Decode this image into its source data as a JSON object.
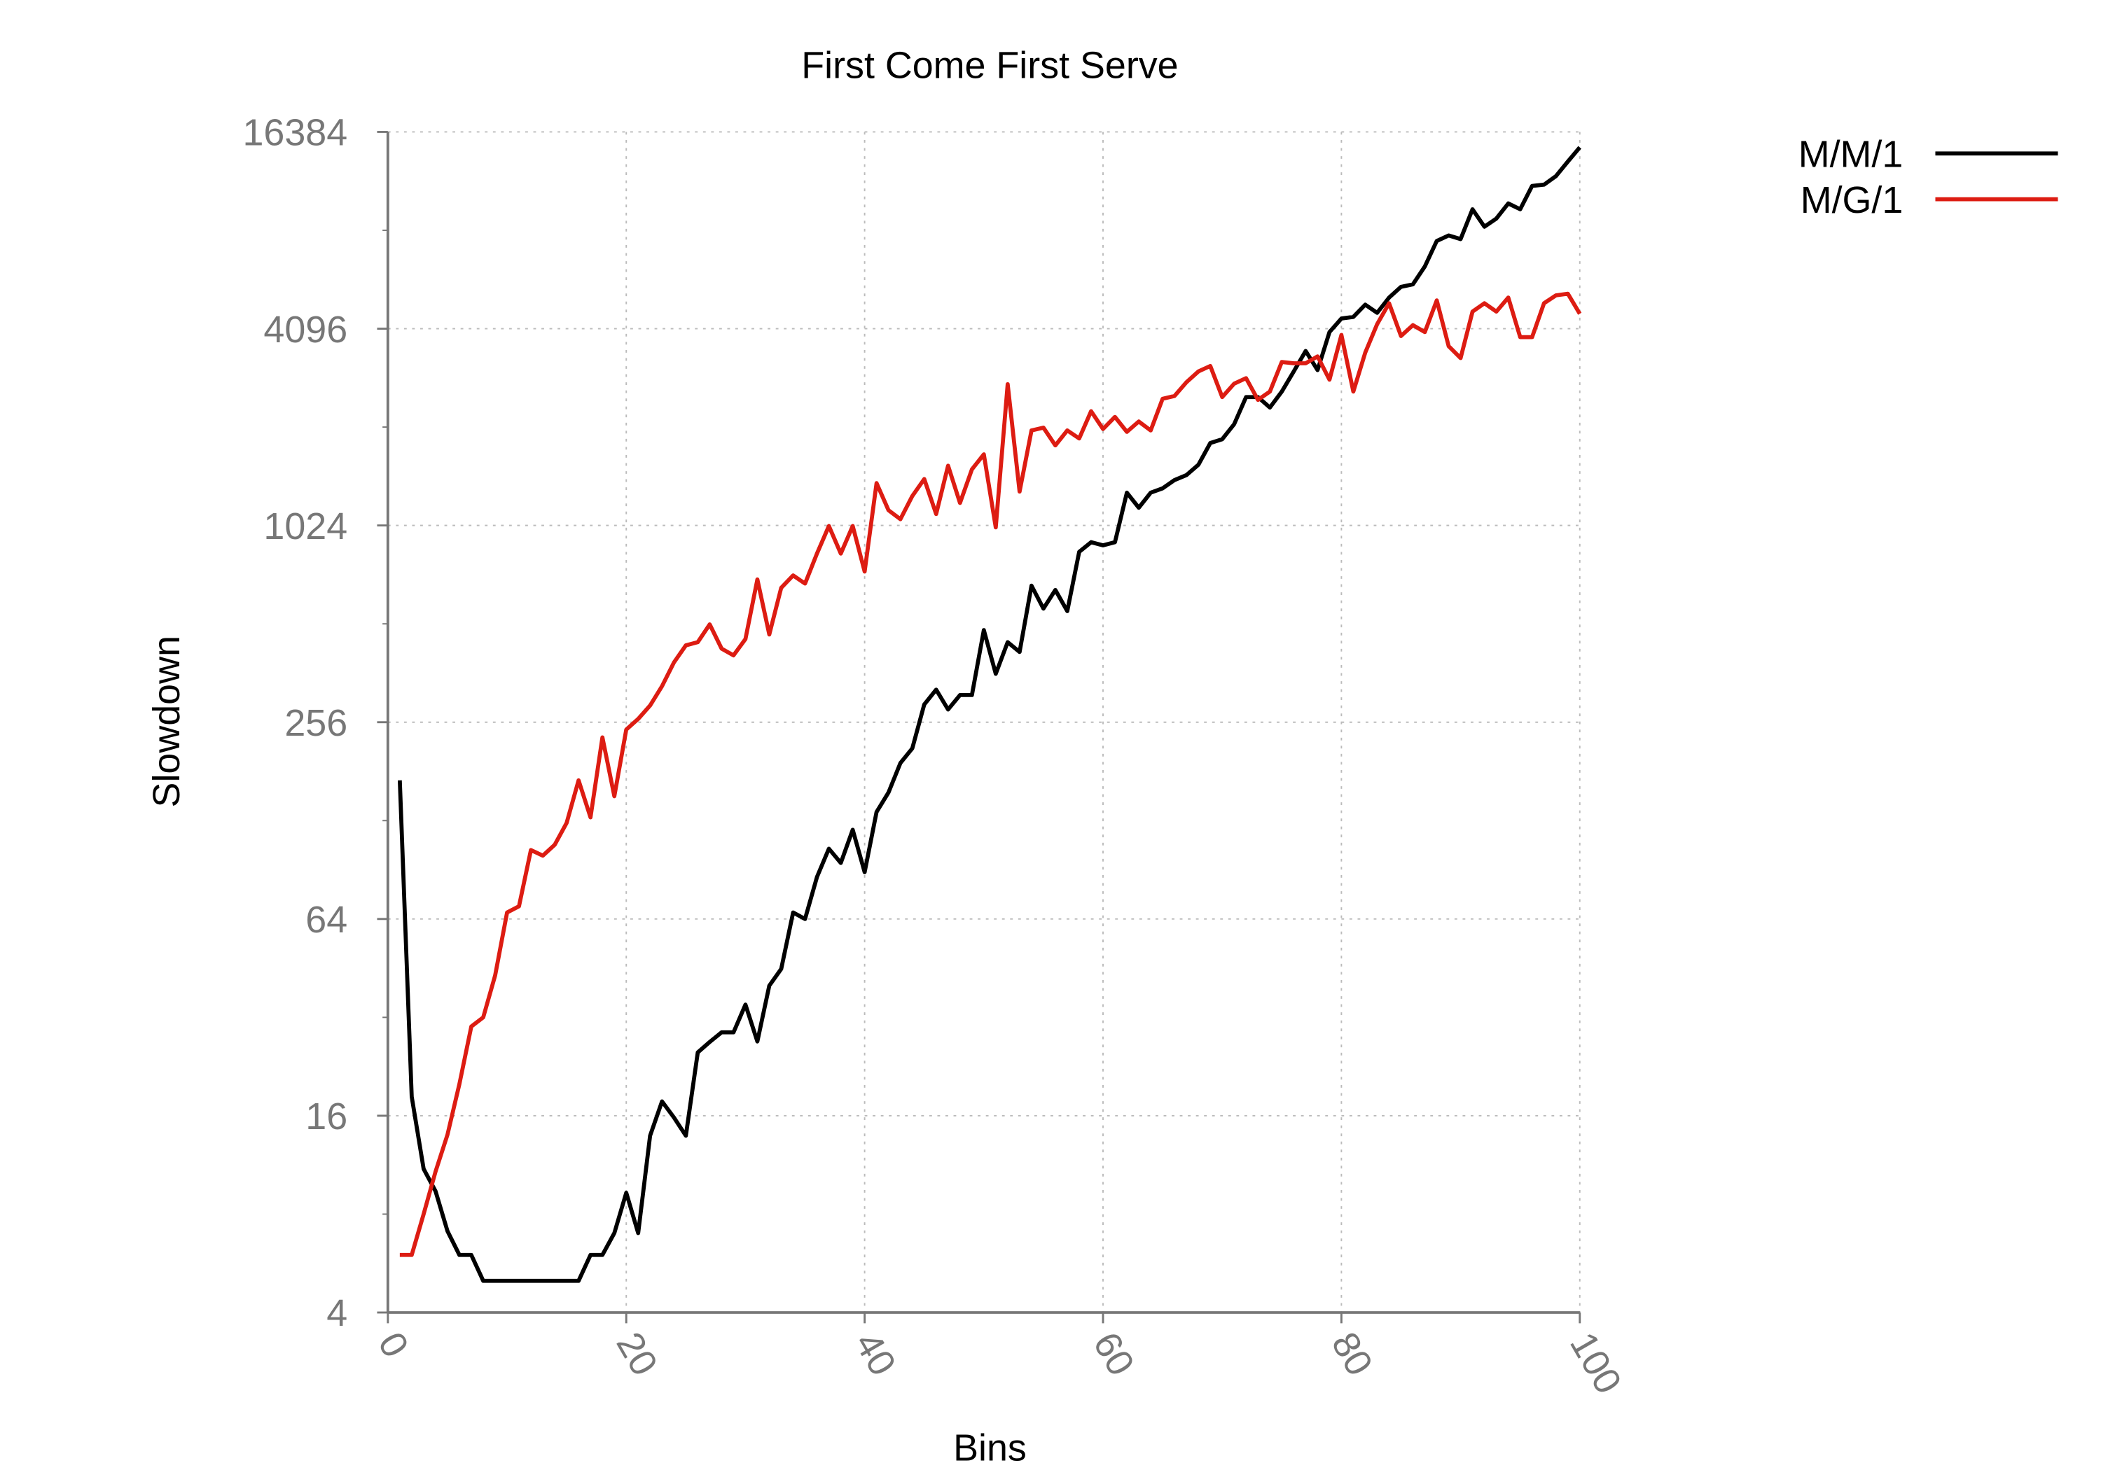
{
  "chart_data": {
    "type": "line",
    "title": "First Come First Serve",
    "xlabel": "Bins",
    "ylabel": "Slowdown",
    "x": [
      1,
      2,
      3,
      4,
      5,
      6,
      7,
      8,
      9,
      10,
      11,
      12,
      13,
      14,
      15,
      16,
      17,
      18,
      19,
      20,
      21,
      22,
      23,
      24,
      25,
      26,
      27,
      28,
      29,
      30,
      31,
      32,
      33,
      34,
      35,
      36,
      37,
      38,
      39,
      40,
      41,
      42,
      43,
      44,
      45,
      46,
      47,
      48,
      49,
      50,
      51,
      52,
      53,
      54,
      55,
      56,
      57,
      58,
      59,
      60,
      61,
      62,
      63,
      64,
      65,
      66,
      67,
      68,
      69,
      70,
      71,
      72,
      73,
      74,
      75,
      76,
      77,
      78,
      79,
      80,
      81,
      82,
      83,
      84,
      85,
      86,
      87,
      88,
      89,
      90,
      91,
      92,
      93,
      94,
      95,
      96,
      97,
      98,
      99,
      100
    ],
    "series": [
      {
        "name": "M/M/1",
        "color": "#000000",
        "values": [
          170,
          18.3,
          11,
          9.4,
          7.1,
          6,
          6,
          5,
          5,
          5,
          5,
          5,
          5,
          5,
          5,
          5,
          6,
          6,
          7,
          9.3,
          7,
          13.9,
          17.7,
          15.8,
          13.9,
          25,
          26.9,
          28.8,
          28.8,
          35,
          27,
          40,
          45,
          67,
          64,
          86,
          105,
          95,
          120,
          89,
          136,
          156,
          192,
          213,
          290,
          322,
          280,
          310,
          310,
          490,
          360,
          450,
          420,
          670,
          570,
          650,
          560,
          850,
          910,
          890,
          910,
          1290,
          1160,
          1290,
          1330,
          1410,
          1460,
          1570,
          1830,
          1880,
          2090,
          2530,
          2530,
          2350,
          2630,
          3030,
          3500,
          3060,
          4000,
          4400,
          4450,
          4850,
          4580,
          5100,
          5500,
          5600,
          6350,
          7600,
          7900,
          7700,
          9500,
          8400,
          8900,
          9900,
          9500,
          11200,
          11300,
          12000,
          13300,
          14700
        ]
      },
      {
        "name": "M/G/1",
        "color": "#dd1c12",
        "values": [
          6,
          6,
          8,
          10.8,
          14,
          20,
          30,
          32,
          43,
          67,
          70,
          104,
          100,
          108,
          126,
          170,
          131,
          230,
          152,
          243,
          262,
          288,
          330,
          390,
          440,
          450,
          510,
          430,
          410,
          460,
          700,
          475,
          660,
          720,
          680,
          840,
          1020,
          840,
          1020,
          740,
          1380,
          1140,
          1070,
          1260,
          1420,
          1110,
          1560,
          1200,
          1520,
          1690,
          1010,
          2770,
          1300,
          2000,
          2040,
          1800,
          2000,
          1890,
          2290,
          2020,
          2200,
          1980,
          2130,
          2000,
          2500,
          2550,
          2810,
          3030,
          3150,
          2530,
          2780,
          2890,
          2480,
          2630,
          3240,
          3210,
          3210,
          3370,
          2860,
          3920,
          2630,
          3460,
          4230,
          4900,
          3890,
          4200,
          4000,
          5000,
          3620,
          3330,
          4620,
          4900,
          4620,
          5100,
          3860,
          3860,
          4900,
          5180,
          5240,
          4550
        ]
      }
    ],
    "xlim": [
      0,
      100
    ],
    "xticks": [
      0,
      20,
      40,
      60,
      80,
      100
    ],
    "ylim": [
      4,
      16384
    ],
    "yticks": [
      4,
      16,
      64,
      256,
      1024,
      4096,
      16384
    ],
    "ylog": true,
    "grid": true,
    "legend": "outside-top-right"
  }
}
